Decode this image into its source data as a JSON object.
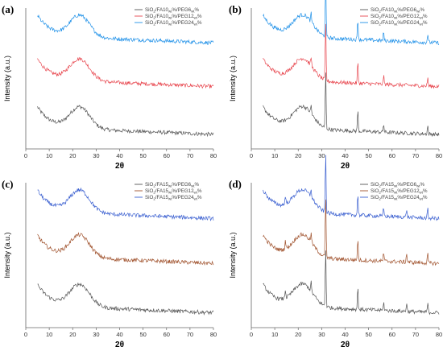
{
  "chart_data": [
    {
      "panel": "(a)",
      "type": "line",
      "xlabel": "2θ",
      "ylabel": "Intensity (a.u.)",
      "xlim": [
        0,
        80
      ],
      "xticks": [
        "0",
        "10",
        "20",
        "30",
        "40",
        "50",
        "60",
        "70",
        "80"
      ],
      "legend_position": "top-right",
      "series": [
        {
          "name": "SiO2/FA10wt%/PEG6wt%",
          "name_parts": [
            "SiO",
            "2",
            "/FA10",
            "wt",
            "%/PEG6",
            "wt",
            "%"
          ],
          "color": "#555555",
          "amorphous_peak_2theta": 23,
          "has_sharp_peaks": false
        },
        {
          "name": "SiO2/FA10wt%/PEG12wt%",
          "name_parts": [
            "SiO",
            "2",
            "/FA10",
            "wt",
            "%/PEG12",
            "wt",
            "%"
          ],
          "color": "#e8474f",
          "amorphous_peak_2theta": 23,
          "has_sharp_peaks": false
        },
        {
          "name": "SiO2/FA10wt%/PEG24wt%",
          "name_parts": [
            "SiO",
            "2",
            "/FA10",
            "wt",
            "%/PEG24",
            "wt",
            "%"
          ],
          "color": "#1e90e8",
          "amorphous_peak_2theta": 23,
          "has_sharp_peaks": false
        }
      ]
    },
    {
      "panel": "(b)",
      "type": "line",
      "xlabel": "2θ",
      "ylabel": "Intensity (a.u.)",
      "xlim": [
        0,
        80
      ],
      "xticks": [
        "0",
        "10",
        "20",
        "30",
        "40",
        "50",
        "60",
        "70",
        "80"
      ],
      "legend_position": "top-right",
      "series": [
        {
          "name": "SiO2/FA10wt%/PEG6wt%",
          "name_parts": [
            "SiO",
            "2",
            "/FA10",
            "wt",
            "%/PEG6",
            "wt",
            "%"
          ],
          "color": "#555555",
          "amorphous_peak_2theta": 22,
          "has_sharp_peaks": true
        },
        {
          "name": "SiO2/FA10wt%/PEG12wt%",
          "name_parts": [
            "SiO",
            "2",
            "/FA10",
            "wt",
            "%/PEG12",
            "wt",
            "%"
          ],
          "color": "#e8474f",
          "amorphous_peak_2theta": 22,
          "has_sharp_peaks": true
        },
        {
          "name": "SiO2/FA10wt%/PEG24wt%",
          "name_parts": [
            "SiO",
            "2",
            "/FA10",
            "wt",
            "%/PEG24",
            "wt",
            "%"
          ],
          "color": "#1e90e8",
          "amorphous_peak_2theta": 22,
          "has_sharp_peaks": true
        }
      ],
      "sharp_peaks_2theta": [
        25.5,
        31.7,
        45.4,
        56.4,
        75.2
      ]
    },
    {
      "panel": "(c)",
      "type": "line",
      "xlabel": "2θ",
      "ylabel": "Intensity (a.u.)",
      "xlim": [
        0,
        80
      ],
      "xticks": [
        "0",
        "10",
        "20",
        "30",
        "40",
        "50",
        "60",
        "70",
        "80"
      ],
      "legend_position": "top-right",
      "series": [
        {
          "name": "SiO2/FA15wt%/PEG6wt%",
          "name_parts": [
            "SiO",
            "2",
            "/FA15",
            "wt",
            "%/PEG6",
            "wt",
            "%"
          ],
          "color": "#555555",
          "amorphous_peak_2theta": 23,
          "has_sharp_peaks": false
        },
        {
          "name": "SiO2/FA15wt%/PEG12wt%",
          "name_parts": [
            "SiO",
            "2",
            "/FA15",
            "wt",
            "%/PEG12",
            "wt",
            "%"
          ],
          "color": "#a0522d",
          "amorphous_peak_2theta": 23,
          "has_sharp_peaks": false
        },
        {
          "name": "SiO2/FA15wt%/PEG24wt%",
          "name_parts": [
            "SiO",
            "2",
            "/FA15",
            "wt",
            "%/PEG24",
            "wt",
            "%"
          ],
          "color": "#3a5fd0",
          "amorphous_peak_2theta": 23,
          "has_sharp_peaks": false
        }
      ]
    },
    {
      "panel": "(d)",
      "type": "line",
      "xlabel": "2θ",
      "ylabel": "Intensity (a.u.)",
      "xlim": [
        0,
        80
      ],
      "xticks": [
        "0",
        "10",
        "20",
        "30",
        "40",
        "50",
        "60",
        "70",
        "80"
      ],
      "legend_position": "top-right",
      "series": [
        {
          "name": "SiO2/FA15wt%/PEG6wt%",
          "name_parts": [
            "SiO",
            "2",
            "/FA15",
            "wt",
            "%/PEG6",
            "wt",
            "%"
          ],
          "color": "#555555",
          "amorphous_peak_2theta": 22,
          "has_sharp_peaks": true
        },
        {
          "name": "SiO2/FA15wt%/PEG12wt%",
          "name_parts": [
            "SiO",
            "2",
            "/FA15",
            "wt",
            "%/PEG12",
            "wt",
            "%"
          ],
          "color": "#a0522d",
          "amorphous_peak_2theta": 22,
          "has_sharp_peaks": true
        },
        {
          "name": "SiO2/FA15wt%/PEG24wt%",
          "name_parts": [
            "SiO",
            "2",
            "/FA15",
            "wt",
            "%/PEG24",
            "wt",
            "%"
          ],
          "color": "#3a5fd0",
          "amorphous_peak_2theta": 22,
          "has_sharp_peaks": true
        }
      ],
      "sharp_peaks_2theta": [
        14.5,
        25.5,
        31.7,
        45.4,
        56.4,
        66.2,
        75.2
      ]
    }
  ]
}
